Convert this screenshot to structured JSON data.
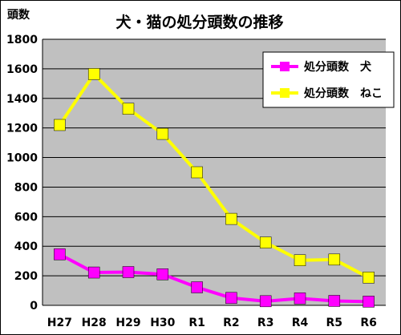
{
  "chart_data": {
    "type": "line",
    "title": "犬・猫の処分頭数の推移",
    "xlabel": "",
    "ylabel": "頭数",
    "categories": [
      "H27",
      "H28",
      "H29",
      "H30",
      "R1",
      "R2",
      "R3",
      "R4",
      "R5",
      "R6"
    ],
    "ylim": [
      0,
      1800
    ],
    "yticks": [
      0,
      200,
      400,
      600,
      800,
      1000,
      1200,
      1400,
      1600,
      1800
    ],
    "grid": true,
    "legend_position": "top-right",
    "plot_background": "#c0c0c0",
    "series": [
      {
        "name": "処分頭数　犬",
        "color": "#ff00ff",
        "values": [
          345,
          222,
          225,
          210,
          122,
          50,
          28,
          47,
          30,
          25
        ]
      },
      {
        "name": "処分頭数　ねこ",
        "color": "#ffff00",
        "values": [
          1220,
          1565,
          1330,
          1160,
          900,
          585,
          425,
          305,
          310,
          188
        ]
      }
    ]
  }
}
